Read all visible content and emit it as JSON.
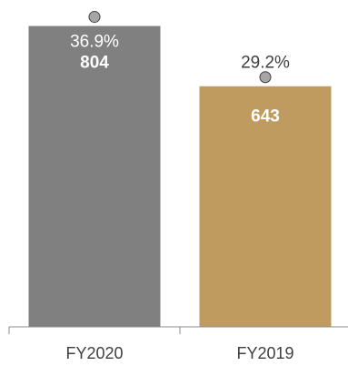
{
  "chart_data": {
    "type": "bar",
    "categories": [
      "FY2020",
      "FY2019"
    ],
    "values": [
      804,
      643
    ],
    "percent_labels": [
      "36.9%",
      "29.2%"
    ],
    "ylim": [
      0,
      900
    ],
    "grid": false,
    "legend": "none",
    "title": "",
    "xlabel": "",
    "ylabel": "",
    "colors": {
      "bars": [
        "#808080",
        "#BF9B5F"
      ],
      "marker_fill": "#A6A6A6",
      "marker_stroke": "#404040",
      "axis": "#8C8C8C",
      "value_label": "#FFFFFF",
      "percent_label_on_bar": "#FFFFFF",
      "percent_label_above": "#404040"
    }
  }
}
